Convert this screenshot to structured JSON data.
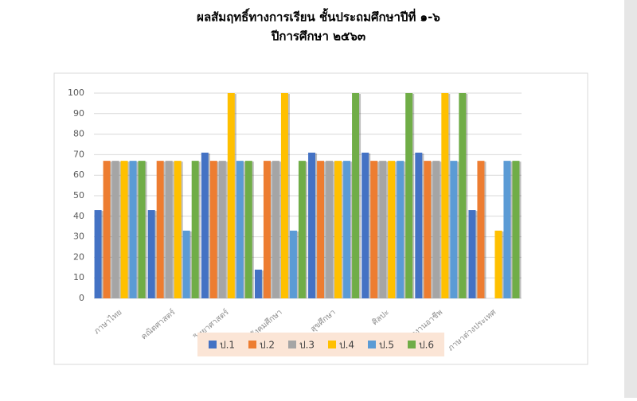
{
  "chart_data": {
    "type": "bar",
    "title": "ผลสัมฤทธิ์ทางการเรียน ชั้นประถมศึกษาปีที่ ๑-๖",
    "subtitle": "ปีการศึกษา ๒๕๖๓",
    "categories": [
      "ภาษาไทย",
      "คณิตศาสตร์",
      "วิทยาศาสตร์",
      "สังคมศึกษา",
      "สุขศึกษา",
      "ศิลปะ",
      "การงานอาชีพ",
      "ภาษาต่างประเทศ"
    ],
    "series": [
      {
        "name": "ป.1",
        "color": "#4472c4",
        "values": [
          43,
          43,
          71,
          14,
          71,
          71,
          71,
          43
        ]
      },
      {
        "name": "ป.2",
        "color": "#ed7d31",
        "values": [
          67,
          67,
          67,
          67,
          67,
          67,
          67,
          67
        ]
      },
      {
        "name": "ป.3",
        "color": "#a5a5a5",
        "values": [
          67,
          67,
          67,
          67,
          67,
          67,
          67,
          0
        ]
      },
      {
        "name": "ป.4",
        "color": "#ffc000",
        "values": [
          67,
          67,
          100,
          100,
          67,
          67,
          100,
          33
        ]
      },
      {
        "name": "ป.5",
        "color": "#5b9bd5",
        "values": [
          67,
          33,
          67,
          33,
          67,
          67,
          67,
          67
        ]
      },
      {
        "name": "ป.6",
        "color": "#70ad47",
        "values": [
          67,
          67,
          67,
          67,
          100,
          100,
          100,
          67
        ]
      }
    ],
    "ylim": [
      0,
      100
    ],
    "yticks": [
      0,
      10,
      20,
      30,
      40,
      50,
      60,
      70,
      80,
      90,
      100
    ],
    "grid": true,
    "legend": "bottom"
  }
}
